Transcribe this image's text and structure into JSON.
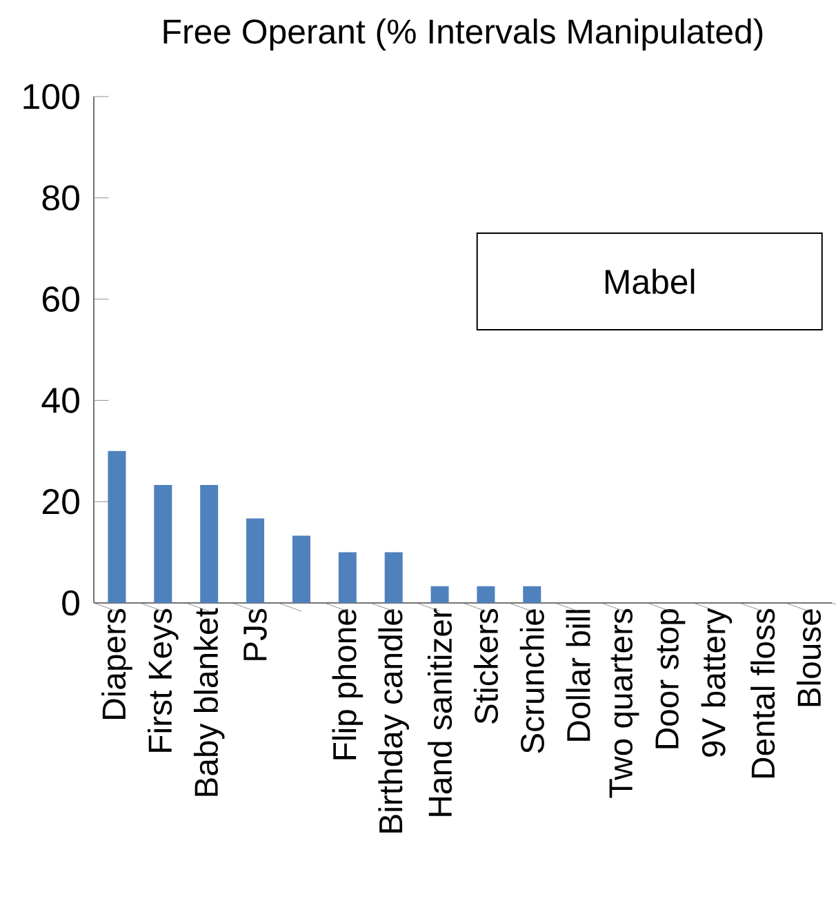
{
  "chart_data": {
    "type": "bar",
    "title": "Free Operant (% Intervals Manipulated)",
    "categories": [
      "Diapers",
      "First Keys",
      "Baby blanket",
      "PJs",
      null,
      "Flip phone",
      "Birthday candle",
      "Hand sanitizer",
      "Stickers",
      "Scrunchie",
      "Dollar bill",
      "Two quarters",
      "Door stop",
      "9V battery",
      "Dental floss",
      "Blouse"
    ],
    "values": [
      30,
      23.3,
      23.3,
      16.7,
      13.3,
      10,
      10,
      3.3,
      3.3,
      3.3,
      0,
      0,
      0,
      0,
      0,
      0
    ],
    "color": "#4f81bd",
    "ylim": [
      0,
      100
    ],
    "yticks": [
      0,
      20,
      40,
      60,
      80,
      100
    ],
    "grid": false,
    "annotations": [
      "Mabel"
    ]
  }
}
